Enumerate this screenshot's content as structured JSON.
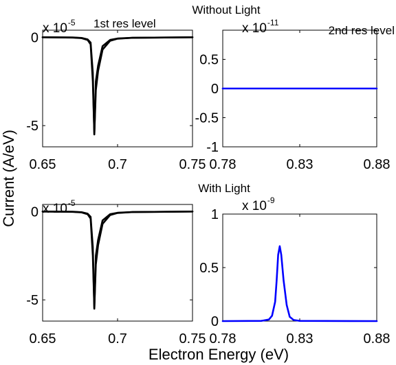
{
  "chart_data": [
    {
      "type": "line",
      "label": "1st res level",
      "multiplier": {
        "base": "x 10",
        "exponent": "-5"
      },
      "xlim": [
        0.65,
        0.75
      ],
      "ylim": [
        -6.2,
        0.4
      ],
      "x_ticks": [
        0.65,
        0.7,
        0.75
      ],
      "x_tick_labels": [
        "0.65",
        "0.7",
        "0.75"
      ],
      "y_ticks": [
        0,
        -5
      ],
      "y_tick_labels": [
        "0",
        "-5"
      ],
      "color": "#000000",
      "series": [
        {
          "x": [
            0.65,
            0.67,
            0.676,
            0.68,
            0.682,
            0.6835,
            0.6845,
            0.6855,
            0.687,
            0.69,
            0.695,
            0.7,
            0.71,
            0.75
          ],
          "y": [
            0,
            -0.02,
            -0.05,
            -0.15,
            -0.4,
            -2.5,
            -5.5,
            -2.5,
            -1.6,
            -0.5,
            -0.15,
            -0.07,
            -0.03,
            0
          ]
        },
        {
          "x": [
            0.65,
            0.67,
            0.676,
            0.68,
            0.682,
            0.6835,
            0.6845,
            0.6855,
            0.687,
            0.69,
            0.695,
            0.7,
            0.71,
            0.75
          ],
          "y": [
            0,
            -0.01,
            -0.04,
            -0.12,
            -0.3,
            -2.0,
            -5.5,
            -3.0,
            -1.9,
            -0.7,
            -0.2,
            -0.08,
            -0.03,
            0
          ]
        }
      ]
    },
    {
      "type": "line",
      "label": "2nd res level",
      "multiplier": {
        "base": "x 10",
        "exponent": "-11"
      },
      "xlim": [
        0.78,
        0.88
      ],
      "ylim": [
        -1,
        1
      ],
      "x_ticks": [
        0.78,
        0.83,
        0.88
      ],
      "x_tick_labels": [
        "0.78",
        "0.83",
        "0.88"
      ],
      "y_ticks": [
        0.5,
        0,
        -0.5,
        -1
      ],
      "y_tick_labels": [
        "0.5",
        "0",
        "-0.5",
        "-1"
      ],
      "color": "#0000ff",
      "series": [
        {
          "x": [
            0.78,
            0.88
          ],
          "y": [
            0,
            0
          ]
        }
      ]
    },
    {
      "type": "line",
      "label": "",
      "multiplier": {
        "base": "x 10",
        "exponent": "-5"
      },
      "xlim": [
        0.65,
        0.75
      ],
      "ylim": [
        -6.2,
        0.4
      ],
      "x_ticks": [
        0.65,
        0.7,
        0.75
      ],
      "x_tick_labels": [
        "0.65",
        "0.7",
        "0.75"
      ],
      "y_ticks": [
        0,
        -5
      ],
      "y_tick_labels": [
        "0",
        "-5"
      ],
      "color": "#000000",
      "series": [
        {
          "x": [
            0.65,
            0.67,
            0.676,
            0.68,
            0.682,
            0.6835,
            0.6845,
            0.6855,
            0.687,
            0.69,
            0.695,
            0.7,
            0.71,
            0.75
          ],
          "y": [
            0,
            -0.02,
            -0.05,
            -0.15,
            -0.4,
            -2.5,
            -5.5,
            -2.5,
            -1.6,
            -0.5,
            -0.15,
            -0.07,
            -0.03,
            0
          ]
        },
        {
          "x": [
            0.65,
            0.67,
            0.676,
            0.68,
            0.682,
            0.6835,
            0.6845,
            0.6855,
            0.687,
            0.69,
            0.695,
            0.7,
            0.71,
            0.75
          ],
          "y": [
            0,
            -0.01,
            -0.04,
            -0.12,
            -0.3,
            -2.0,
            -5.5,
            -3.0,
            -1.9,
            -0.7,
            -0.2,
            -0.08,
            -0.03,
            0
          ]
        }
      ]
    },
    {
      "type": "line",
      "label": "",
      "multiplier": {
        "base": "x 10",
        "exponent": "-9"
      },
      "xlim": [
        0.78,
        0.88
      ],
      "ylim": [
        0,
        1
      ],
      "x_ticks": [
        0.78,
        0.83,
        0.88
      ],
      "x_tick_labels": [
        "0.78",
        "0.83",
        "0.88"
      ],
      "y_ticks": [
        1,
        0.5,
        0
      ],
      "y_tick_labels": [
        "1",
        "0.5",
        "0"
      ],
      "color": "#0000ff",
      "series": [
        {
          "x": [
            0.78,
            0.805,
            0.81,
            0.812,
            0.814,
            0.815,
            0.816,
            0.817,
            0.818,
            0.8195,
            0.8215,
            0.8235,
            0.826,
            0.83,
            0.88
          ],
          "y": [
            0,
            0.002,
            0.015,
            0.05,
            0.18,
            0.38,
            0.62,
            0.7,
            0.62,
            0.38,
            0.15,
            0.04,
            0.01,
            0.002,
            0
          ]
        }
      ]
    }
  ],
  "titles": {
    "top": "Without Light",
    "bottom": "With Light"
  },
  "ylabel": "Current (A/eV)",
  "xlabel": "Electron Energy (eV)"
}
